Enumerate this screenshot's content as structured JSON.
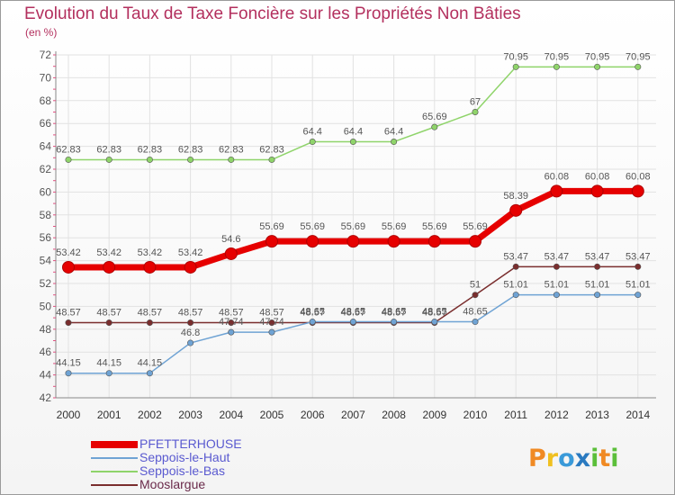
{
  "chart_data": {
    "type": "line",
    "title": "Evolution du Taux de Taxe Foncière sur les Propriétés Non Bâties",
    "ylabel": "(en %)",
    "x": [
      "2000",
      "2001",
      "2002",
      "2003",
      "2004",
      "2005",
      "2006",
      "2007",
      "2008",
      "2009",
      "2010",
      "2011",
      "2012",
      "2013",
      "2014"
    ],
    "ylim": [
      42,
      72
    ],
    "yticks": [
      42,
      44,
      46,
      48,
      50,
      52,
      54,
      56,
      58,
      60,
      62,
      64,
      66,
      68,
      70,
      72
    ],
    "grid": true,
    "legend_position": "bottom-left",
    "series": [
      {
        "name": "PFETTERHOUSE",
        "color": "#e60000",
        "values": [
          53.42,
          53.42,
          53.42,
          53.42,
          54.6,
          55.69,
          55.69,
          55.69,
          55.69,
          55.69,
          55.69,
          58.39,
          60.08,
          60.08,
          60.08
        ],
        "labels": [
          "53.42",
          "53.42",
          "53.42",
          "53.42",
          "54.6",
          "55.69",
          "55.69",
          "55.69",
          "55.69",
          "55.69",
          "55.69",
          "58.39",
          "60.08",
          "60.08",
          "60.08"
        ]
      },
      {
        "name": "Seppois-le-Haut",
        "color": "#6fa3d4",
        "values": [
          44.15,
          44.15,
          44.15,
          46.8,
          47.74,
          47.74,
          48.65,
          48.65,
          48.65,
          48.65,
          48.65,
          51.01,
          51.01,
          51.01,
          51.01
        ],
        "labels": [
          "44.15",
          "44.15",
          "44.15",
          "46.8",
          "47.74",
          "47.74",
          "48.65",
          "48.65",
          "48.65",
          "48.65",
          "48.65",
          "51.01",
          "51.01",
          "51.01",
          "51.01"
        ]
      },
      {
        "name": "Seppois-le-Bas",
        "color": "#8fd46a",
        "values": [
          62.83,
          62.83,
          62.83,
          62.83,
          62.83,
          62.83,
          64.4,
          64.4,
          64.4,
          65.69,
          67,
          70.95,
          70.95,
          70.95,
          70.95
        ],
        "labels": [
          "62.83",
          "62.83",
          "62.83",
          "62.83",
          "62.83",
          "62.83",
          "64.4",
          "64.4",
          "64.4",
          "65.69",
          "67",
          "70.95",
          "70.95",
          "70.95",
          "70.95"
        ]
      },
      {
        "name": "Mooslargue",
        "color": "#7a2e2e",
        "values": [
          48.57,
          48.57,
          48.57,
          48.57,
          48.57,
          48.57,
          48.57,
          48.57,
          48.57,
          48.57,
          51,
          53.47,
          53.47,
          53.47,
          53.47
        ],
        "labels": [
          "48.57",
          "48.57",
          "48.57",
          "48.57",
          "48.57",
          "48.57",
          "48.57",
          "48.57",
          "48.57",
          "48.57",
          "51",
          "53.47",
          "53.47",
          "53.47",
          "53.47"
        ]
      }
    ]
  },
  "logo": {
    "text": "Proxiti"
  },
  "colors": {
    "title": "#b3305e",
    "label_text": "#555555",
    "grid": "#e2e2e2",
    "axis": "#888888",
    "tick_marks": "#e05080",
    "logo_p": "#f08a24",
    "logo_r": "#f0c020",
    "logo_o": "#3a9ad9",
    "logo_x": "#2a7ac0",
    "logo_i": "#5bbf3a",
    "logo_t": "#f08a24"
  }
}
